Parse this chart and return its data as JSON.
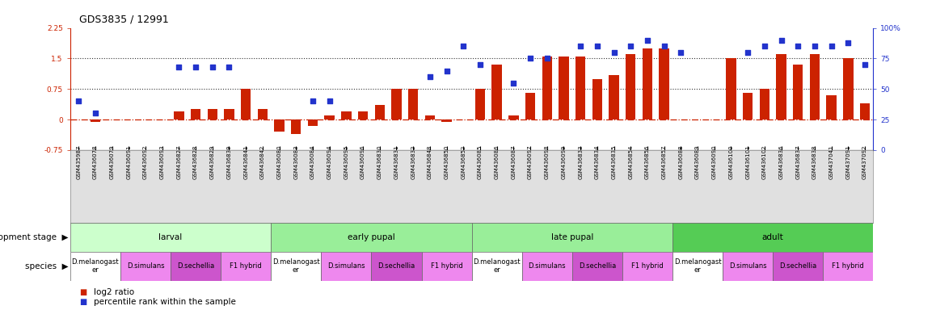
{
  "title": "GDS3835 / 12991",
  "sample_ids": [
    "GSM435987",
    "GSM436078",
    "GSM436079",
    "GSM436091",
    "GSM436092",
    "GSM436093",
    "GSM436827",
    "GSM436828",
    "GSM436829",
    "GSM436839",
    "GSM436841",
    "GSM436842",
    "GSM436080",
    "GSM436083",
    "GSM436084",
    "GSM436094",
    "GSM436095",
    "GSM436096",
    "GSM436830",
    "GSM436831",
    "GSM436832",
    "GSM436848",
    "GSM436850",
    "GSM436852",
    "GSM436085",
    "GSM436086",
    "GSM436087",
    "GSM436097",
    "GSM436098",
    "GSM436099",
    "GSM436833",
    "GSM436834",
    "GSM436835",
    "GSM436854",
    "GSM436856",
    "GSM436857",
    "GSM436088",
    "GSM436089",
    "GSM436090",
    "GSM436100",
    "GSM436101",
    "GSM436102",
    "GSM436836",
    "GSM436837",
    "GSM436838",
    "GSM437041",
    "GSM437091",
    "GSM437092"
  ],
  "log2_ratio": [
    0.0,
    -0.05,
    0.0,
    0.0,
    0.0,
    0.0,
    0.2,
    0.25,
    0.25,
    0.25,
    0.75,
    0.25,
    -0.3,
    -0.35,
    -0.15,
    0.1,
    0.2,
    0.2,
    0.35,
    0.75,
    0.75,
    0.1,
    -0.05,
    0.0,
    0.75,
    1.35,
    0.1,
    0.65,
    1.55,
    1.55,
    1.55,
    1.0,
    1.1,
    1.6,
    1.75,
    1.75,
    0.0,
    0.0,
    0.0,
    1.5,
    0.65,
    0.75,
    1.6,
    1.35,
    1.6,
    0.6,
    1.5,
    0.4
  ],
  "percentile_pct": [
    40,
    30,
    0,
    0,
    0,
    0,
    68,
    68,
    68,
    68,
    0,
    0,
    0,
    0,
    40,
    40,
    0,
    0,
    0,
    0,
    0,
    60,
    65,
    85,
    70,
    0,
    55,
    75,
    75,
    0,
    85,
    85,
    80,
    85,
    90,
    85,
    80,
    0,
    0,
    0,
    80,
    85,
    90,
    85,
    85,
    85,
    88,
    70
  ],
  "ylim_left": [
    -0.75,
    2.25
  ],
  "ylim_right": [
    0,
    100
  ],
  "yticks_left": [
    -0.75,
    0.0,
    0.75,
    1.5,
    2.25
  ],
  "ytick_labels_left": [
    "-0.75",
    "0",
    "0.75",
    "1.5",
    "2.25"
  ],
  "yticks_right": [
    0,
    25,
    50,
    75,
    100
  ],
  "ytick_labels_right": [
    "0",
    "25",
    "50",
    "75",
    "100%"
  ],
  "hlines_dotted": [
    0.75,
    1.5
  ],
  "bar_color": "#cc2200",
  "dot_color": "#2233cc",
  "zero_line_color": "#cc2200",
  "dev_stage_colors": {
    "larval": "#ccffcc",
    "early pupal": "#99ee99",
    "late pupal": "#99ee99",
    "adult": "#55cc55"
  },
  "dev_stages": [
    {
      "label": "larval",
      "start": 0,
      "end": 12
    },
    {
      "label": "early pupal",
      "start": 12,
      "end": 24
    },
    {
      "label": "late pupal",
      "start": 24,
      "end": 36
    },
    {
      "label": "adult",
      "start": 36,
      "end": 48
    }
  ],
  "species_colors": {
    "D.melanogaster": "#ffffff",
    "D.simulans": "#ee88ee",
    "D.sechellia": "#cc55cc",
    "F1 hybrid": "#ee88ee"
  },
  "species_groups": [
    {
      "label": "D.melanogast\ner",
      "type": "D.melanogaster",
      "start": 0,
      "end": 3
    },
    {
      "label": "D.simulans",
      "type": "D.simulans",
      "start": 3,
      "end": 6
    },
    {
      "label": "D.sechellia",
      "type": "D.sechellia",
      "start": 6,
      "end": 9
    },
    {
      "label": "F1 hybrid",
      "type": "F1 hybrid",
      "start": 9,
      "end": 12
    },
    {
      "label": "D.melanogast\ner",
      "type": "D.melanogaster",
      "start": 12,
      "end": 15
    },
    {
      "label": "D.simulans",
      "type": "D.simulans",
      "start": 15,
      "end": 18
    },
    {
      "label": "D.sechellia",
      "type": "D.sechellia",
      "start": 18,
      "end": 21
    },
    {
      "label": "F1 hybrid",
      "type": "F1 hybrid",
      "start": 21,
      "end": 24
    },
    {
      "label": "D.melanogast\ner",
      "type": "D.melanogaster",
      "start": 24,
      "end": 27
    },
    {
      "label": "D.simulans",
      "type": "D.simulans",
      "start": 27,
      "end": 30
    },
    {
      "label": "D.sechellia",
      "type": "D.sechellia",
      "start": 30,
      "end": 33
    },
    {
      "label": "F1 hybrid",
      "type": "F1 hybrid",
      "start": 33,
      "end": 36
    },
    {
      "label": "D.melanogast\ner",
      "type": "D.melanogaster",
      "start": 36,
      "end": 39
    },
    {
      "label": "D.simulans",
      "type": "D.simulans",
      "start": 39,
      "end": 42
    },
    {
      "label": "D.sechellia",
      "type": "D.sechellia",
      "start": 42,
      "end": 45
    },
    {
      "label": "F1 hybrid",
      "type": "F1 hybrid",
      "start": 45,
      "end": 48
    }
  ],
  "bg_color": "#ffffff",
  "title_fontsize": 9,
  "tick_fontsize": 6.5,
  "sample_label_fontsize": 5.0,
  "row_label_fontsize": 7.5,
  "stage_label_fontsize": 7.5,
  "species_label_fontsize": 6.0,
  "legend_fontsize": 7.5
}
